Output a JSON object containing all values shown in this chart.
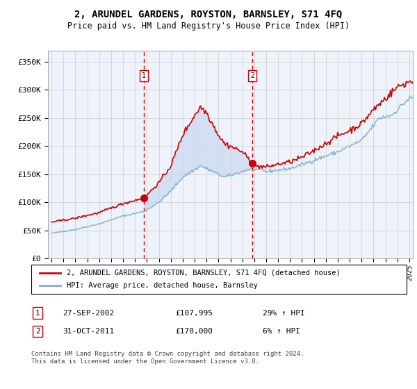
{
  "title": "2, ARUNDEL GARDENS, ROYSTON, BARNSLEY, S71 4FQ",
  "subtitle": "Price paid vs. HM Land Registry's House Price Index (HPI)",
  "ylim": [
    0,
    370000
  ],
  "yticks": [
    0,
    50000,
    100000,
    150000,
    200000,
    250000,
    300000,
    350000
  ],
  "ytick_labels": [
    "£0",
    "£50K",
    "£100K",
    "£150K",
    "£200K",
    "£250K",
    "£300K",
    "£350K"
  ],
  "bg_color": "#ffffff",
  "plot_bg_color": "#eef2fa",
  "grid_color": "#cccccc",
  "transaction1_date": 2002.75,
  "transaction1_price": 107995,
  "transaction2_date": 2011.833,
  "transaction2_price": 170000,
  "legend_line1": "2, ARUNDEL GARDENS, ROYSTON, BARNSLEY, S71 4FQ (detached house)",
  "legend_line2": "HPI: Average price, detached house, Barnsley",
  "footer": "Contains HM Land Registry data © Crown copyright and database right 2024.\nThis data is licensed under the Open Government Licence v3.0.",
  "red_color": "#cc0000",
  "blue_color": "#7ab0d4",
  "shade_color": "#c8d8f0",
  "xmin": 1995,
  "xmax": 2025
}
